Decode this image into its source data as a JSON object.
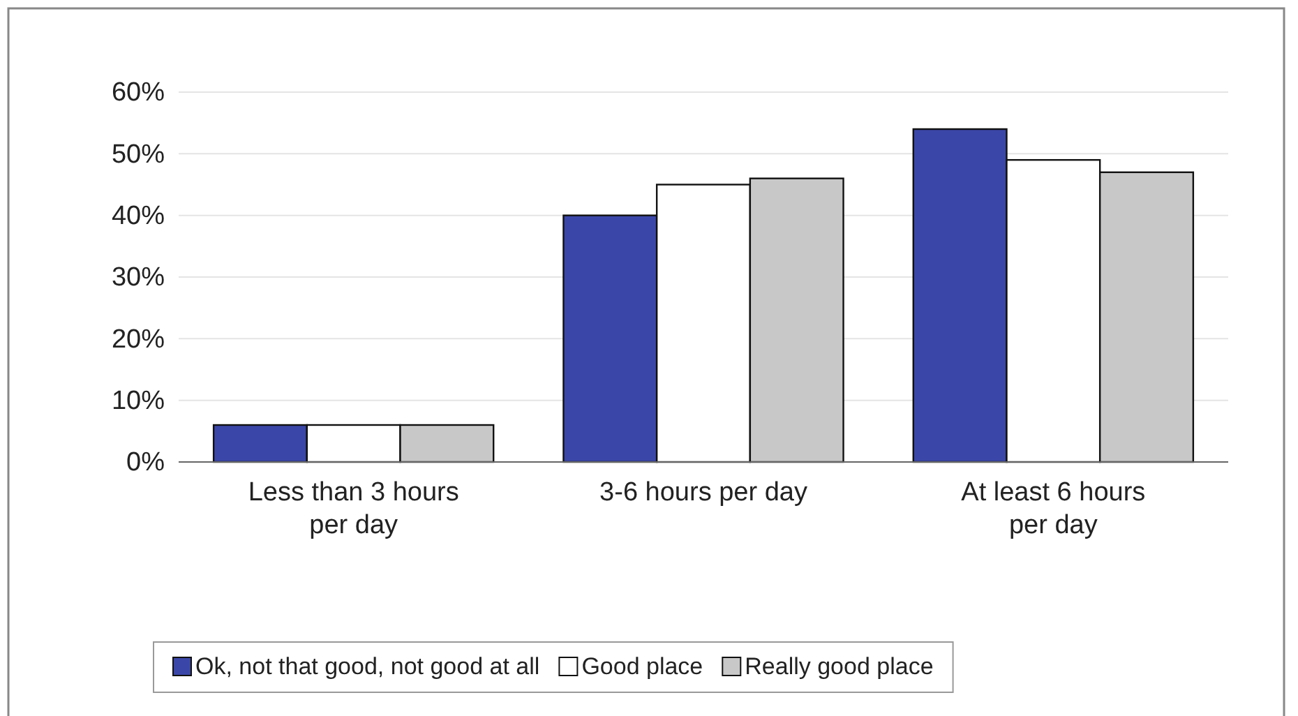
{
  "chart_data": {
    "type": "bar",
    "categories": [
      "Less than 3 hours per day",
      "3-6 hours per day",
      "At least 6 hours per day"
    ],
    "series": [
      {
        "name": "Ok, not that good, not good at all",
        "color": "#3b47a8",
        "values": [
          6,
          40,
          54
        ]
      },
      {
        "name": "Good place",
        "color": "#ffffff",
        "values": [
          6,
          45,
          49
        ]
      },
      {
        "name": "Really good place",
        "color": "#c8c8c8",
        "values": [
          6,
          46,
          47
        ]
      }
    ],
    "ylim": [
      0,
      60
    ],
    "yticks": [
      {
        "value": 0,
        "label": "0%"
      },
      {
        "value": 10,
        "label": "10%"
      },
      {
        "value": 20,
        "label": "20%"
      },
      {
        "value": 30,
        "label": "30%"
      },
      {
        "value": 40,
        "label": "40%"
      },
      {
        "value": 50,
        "label": "50%"
      },
      {
        "value": 60,
        "label": "60%"
      }
    ],
    "grid": "y",
    "legend": "bottom"
  }
}
